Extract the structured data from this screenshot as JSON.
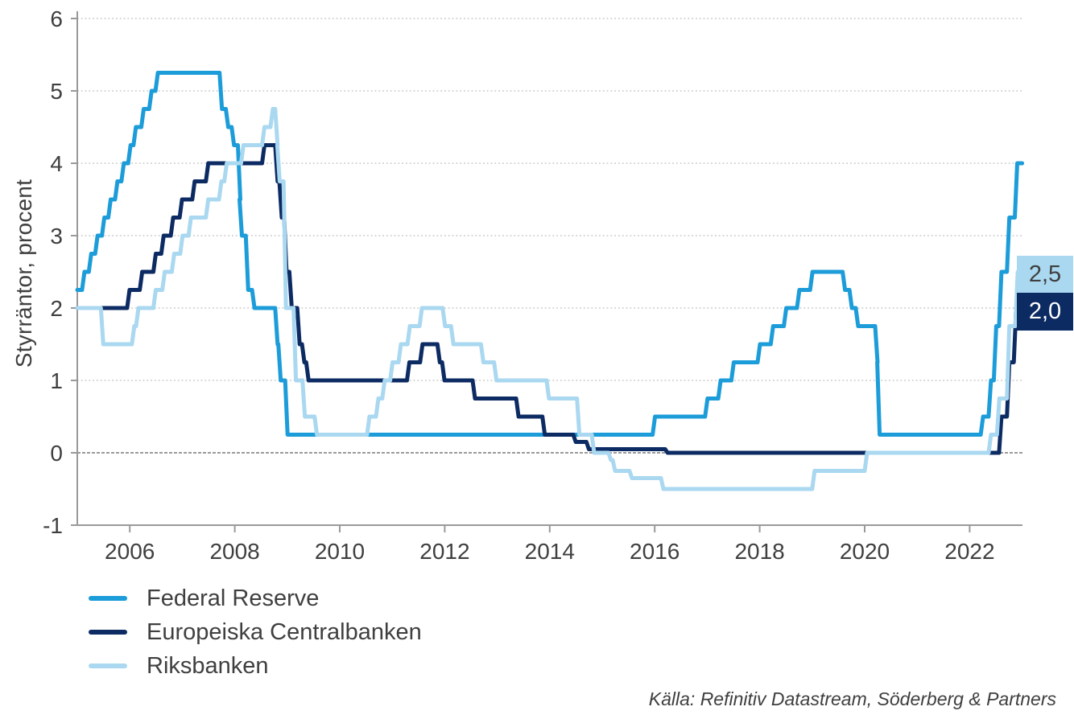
{
  "page": {
    "background": "#FFFFFF"
  },
  "source_note": "Källa: Refinitiv Datastream, Söderberg & Partners",
  "legend": {
    "items": [
      {
        "label": "Federal Reserve"
      },
      {
        "label": "Europeiska Centralbanken"
      },
      {
        "label": "Riksbanken"
      }
    ]
  },
  "colors": {
    "text": "#3F3F3F",
    "gridline": "#C9C9C9",
    "axis": "#9A9A9A",
    "zero_line": "#9A9A9A",
    "fed_blue": "#1C9CD9",
    "ecb_navy": "#0D2B63",
    "riksbank_lightblue": "#A9D8F0"
  },
  "chart_data": {
    "type": "line",
    "title": "",
    "xlabel": "",
    "ylabel": "Styrräntor, procent",
    "ylim": [
      -1,
      6
    ],
    "xlim": [
      2005,
      2023
    ],
    "y_ticks": [
      6,
      5,
      4,
      3,
      2,
      1,
      0,
      -1
    ],
    "x_ticks": [
      2006,
      2008,
      2010,
      2012,
      2014,
      2016,
      2018,
      2020,
      2022
    ],
    "grid": "horizontal dotted",
    "legend_position": "bottom-left",
    "line_style": "step-after (policy rate changes)",
    "series": [
      {
        "name": "Federal Reserve",
        "color": "#1C9CD9",
        "points": [
          [
            2005.0,
            2.25
          ],
          [
            2005.09,
            2.5
          ],
          [
            2005.22,
            2.75
          ],
          [
            2005.34,
            3.0
          ],
          [
            2005.47,
            3.25
          ],
          [
            2005.59,
            3.5
          ],
          [
            2005.72,
            3.75
          ],
          [
            2005.84,
            4.0
          ],
          [
            2005.97,
            4.25
          ],
          [
            2006.07,
            4.5
          ],
          [
            2006.22,
            4.75
          ],
          [
            2006.37,
            5.0
          ],
          [
            2006.49,
            5.25
          ],
          [
            2007.71,
            4.75
          ],
          [
            2007.83,
            4.5
          ],
          [
            2007.94,
            4.25
          ],
          [
            2008.06,
            3.5
          ],
          [
            2008.09,
            3.0
          ],
          [
            2008.21,
            2.25
          ],
          [
            2008.33,
            2.0
          ],
          [
            2008.77,
            1.5
          ],
          [
            2008.83,
            1.0
          ],
          [
            2008.96,
            0.25
          ],
          [
            2015.96,
            0.5
          ],
          [
            2016.96,
            0.75
          ],
          [
            2017.21,
            1.0
          ],
          [
            2017.46,
            1.25
          ],
          [
            2017.96,
            1.5
          ],
          [
            2018.21,
            1.75
          ],
          [
            2018.46,
            2.0
          ],
          [
            2018.71,
            2.25
          ],
          [
            2018.96,
            2.5
          ],
          [
            2019.58,
            2.25
          ],
          [
            2019.71,
            2.0
          ],
          [
            2019.83,
            1.75
          ],
          [
            2020.2,
            1.25
          ],
          [
            2020.24,
            0.25
          ],
          [
            2022.21,
            0.5
          ],
          [
            2022.36,
            1.0
          ],
          [
            2022.46,
            1.75
          ],
          [
            2022.56,
            2.5
          ],
          [
            2022.71,
            3.25
          ],
          [
            2022.86,
            4.0
          ]
        ],
        "end_year": 2023.0,
        "end_value": 4.0
      },
      {
        "name": "Europeiska Centralbanken",
        "color": "#0D2B63",
        "points": [
          [
            2005.0,
            2.0
          ],
          [
            2005.95,
            2.25
          ],
          [
            2006.19,
            2.5
          ],
          [
            2006.45,
            2.75
          ],
          [
            2006.6,
            3.0
          ],
          [
            2006.78,
            3.25
          ],
          [
            2006.95,
            3.5
          ],
          [
            2007.19,
            3.75
          ],
          [
            2007.45,
            4.0
          ],
          [
            2008.52,
            4.25
          ],
          [
            2008.77,
            3.75
          ],
          [
            2008.85,
            3.25
          ],
          [
            2008.94,
            2.5
          ],
          [
            2009.04,
            2.0
          ],
          [
            2009.19,
            1.5
          ],
          [
            2009.28,
            1.25
          ],
          [
            2009.36,
            1.0
          ],
          [
            2011.28,
            1.25
          ],
          [
            2011.53,
            1.5
          ],
          [
            2011.86,
            1.25
          ],
          [
            2011.95,
            1.0
          ],
          [
            2012.53,
            0.75
          ],
          [
            2013.36,
            0.5
          ],
          [
            2013.86,
            0.25
          ],
          [
            2014.45,
            0.15
          ],
          [
            2014.7,
            0.05
          ],
          [
            2016.2,
            0.0
          ],
          [
            2022.56,
            0.5
          ],
          [
            2022.71,
            1.25
          ],
          [
            2022.84,
            2.0
          ]
        ],
        "end_year": 2023.0,
        "end_value": 2.0
      },
      {
        "name": "Riksbanken",
        "color": "#A9D8F0",
        "points": [
          [
            2005.0,
            2.0
          ],
          [
            2005.45,
            1.5
          ],
          [
            2006.04,
            1.75
          ],
          [
            2006.12,
            2.0
          ],
          [
            2006.45,
            2.25
          ],
          [
            2006.62,
            2.5
          ],
          [
            2006.8,
            2.75
          ],
          [
            2006.96,
            3.0
          ],
          [
            2007.12,
            3.25
          ],
          [
            2007.45,
            3.5
          ],
          [
            2007.7,
            3.75
          ],
          [
            2007.8,
            4.0
          ],
          [
            2008.12,
            4.25
          ],
          [
            2008.52,
            4.5
          ],
          [
            2008.68,
            4.75
          ],
          [
            2008.77,
            4.25
          ],
          [
            2008.81,
            3.75
          ],
          [
            2008.93,
            2.0
          ],
          [
            2009.12,
            1.0
          ],
          [
            2009.29,
            0.5
          ],
          [
            2009.52,
            0.25
          ],
          [
            2010.52,
            0.5
          ],
          [
            2010.69,
            0.75
          ],
          [
            2010.81,
            1.0
          ],
          [
            2010.96,
            1.25
          ],
          [
            2011.12,
            1.5
          ],
          [
            2011.29,
            1.75
          ],
          [
            2011.52,
            2.0
          ],
          [
            2011.96,
            1.75
          ],
          [
            2012.12,
            1.5
          ],
          [
            2012.69,
            1.25
          ],
          [
            2012.94,
            1.0
          ],
          [
            2013.94,
            0.75
          ],
          [
            2014.52,
            0.25
          ],
          [
            2014.8,
            0.0
          ],
          [
            2015.12,
            -0.1
          ],
          [
            2015.2,
            -0.25
          ],
          [
            2015.52,
            -0.35
          ],
          [
            2016.12,
            -0.5
          ],
          [
            2019.0,
            -0.25
          ],
          [
            2020.0,
            0.0
          ],
          [
            2022.36,
            0.25
          ],
          [
            2022.52,
            0.75
          ],
          [
            2022.71,
            1.75
          ],
          [
            2022.87,
            2.5
          ]
        ],
        "end_year": 2023.0,
        "end_value": 2.5
      }
    ],
    "end_labels": [
      {
        "text": "2,5",
        "value": 2.5,
        "bg": "#A9D8F0",
        "fg": "#3F3F3F",
        "series": "Riksbanken"
      },
      {
        "text": "2,0",
        "value": 2.0,
        "bg": "#0D2B63",
        "fg": "#FFFFFF",
        "series": "Europeiska Centralbanken"
      }
    ]
  }
}
